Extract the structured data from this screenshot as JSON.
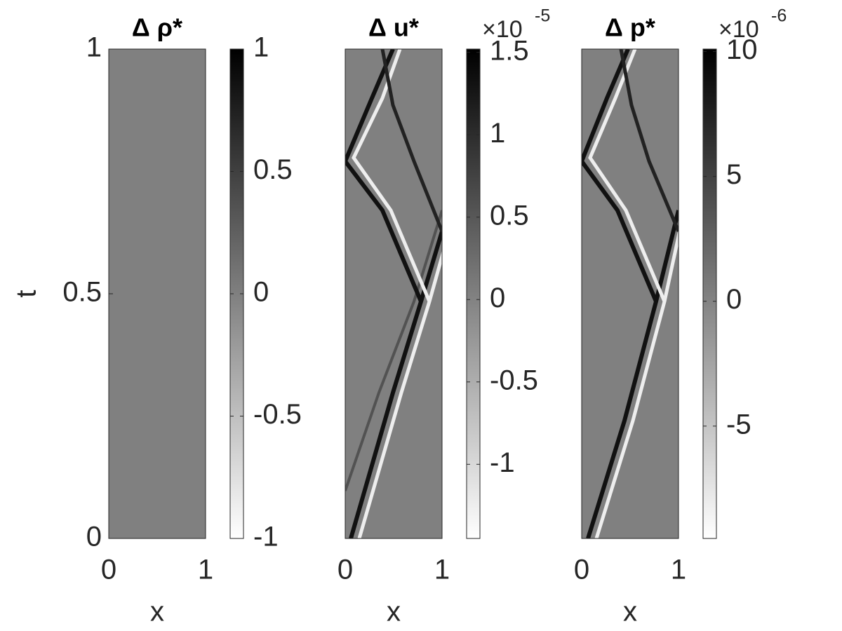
{
  "chart_data": [
    {
      "type": "heatmap",
      "title": "Δ ρ*",
      "xlabel": "x",
      "ylabel": "t",
      "xlim": [
        0,
        1
      ],
      "xticks": [
        0,
        1
      ],
      "ylim": [
        0,
        1
      ],
      "yticks": [
        0,
        0.5,
        1
      ],
      "colormap": "gray",
      "colorbar": {
        "clim": [
          -1,
          1
        ],
        "ticks": [
          -1,
          -0.5,
          0,
          0.5,
          1
        ]
      }
    },
    {
      "type": "heatmap",
      "title": "Δ u*",
      "xlabel": "x",
      "xlim": [
        0,
        1
      ],
      "xticks": [
        0,
        1
      ],
      "ylim": [
        0,
        1
      ],
      "colormap": "gray",
      "colorbar": {
        "clim": [
          -1.45,
          1.52
        ],
        "ticks": [
          -1,
          -0.5,
          0,
          0.5,
          1,
          1.5
        ],
        "scale": "×10",
        "exponent": "-5"
      }
    },
    {
      "type": "heatmap",
      "title": "Δ p*",
      "xlabel": "x",
      "xlim": [
        0,
        1
      ],
      "xticks": [
        0,
        1
      ],
      "ylim": [
        0,
        1
      ],
      "colormap": "gray",
      "colorbar": {
        "clim": [
          -9.5,
          10.1
        ],
        "ticks": [
          -5,
          0,
          5,
          10
        ],
        "scale": "×10",
        "exponent": "-6"
      }
    }
  ]
}
